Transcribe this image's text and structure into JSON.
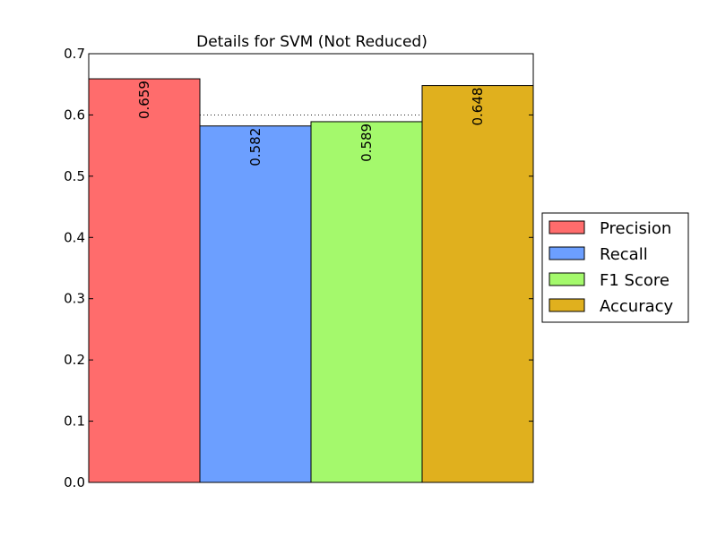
{
  "chart_data": {
    "type": "bar",
    "title": "Details for SVM (Not Reduced)",
    "xlabel": "",
    "ylabel": "",
    "ylim": [
      0,
      0.7
    ],
    "yticks": [
      0.0,
      0.1,
      0.2,
      0.3,
      0.4,
      0.5,
      0.6,
      0.7
    ],
    "ytick_labels": [
      "0.0",
      "0.1",
      "0.2",
      "0.3",
      "0.4",
      "0.5",
      "0.6",
      "0.7"
    ],
    "grid": "horizontal-dotted",
    "legend_position": "right-center",
    "series": [
      {
        "name": "Precision",
        "value": 0.659,
        "label": "0.659",
        "color": "#ff6c6c"
      },
      {
        "name": "Recall",
        "value": 0.582,
        "label": "0.582",
        "color": "#6c9fff"
      },
      {
        "name": "F1 Score",
        "value": 0.589,
        "label": "0.589",
        "color": "#a4f96c"
      },
      {
        "name": "Accuracy",
        "value": 0.648,
        "label": "0.648",
        "color": "#e0b01e"
      }
    ]
  }
}
